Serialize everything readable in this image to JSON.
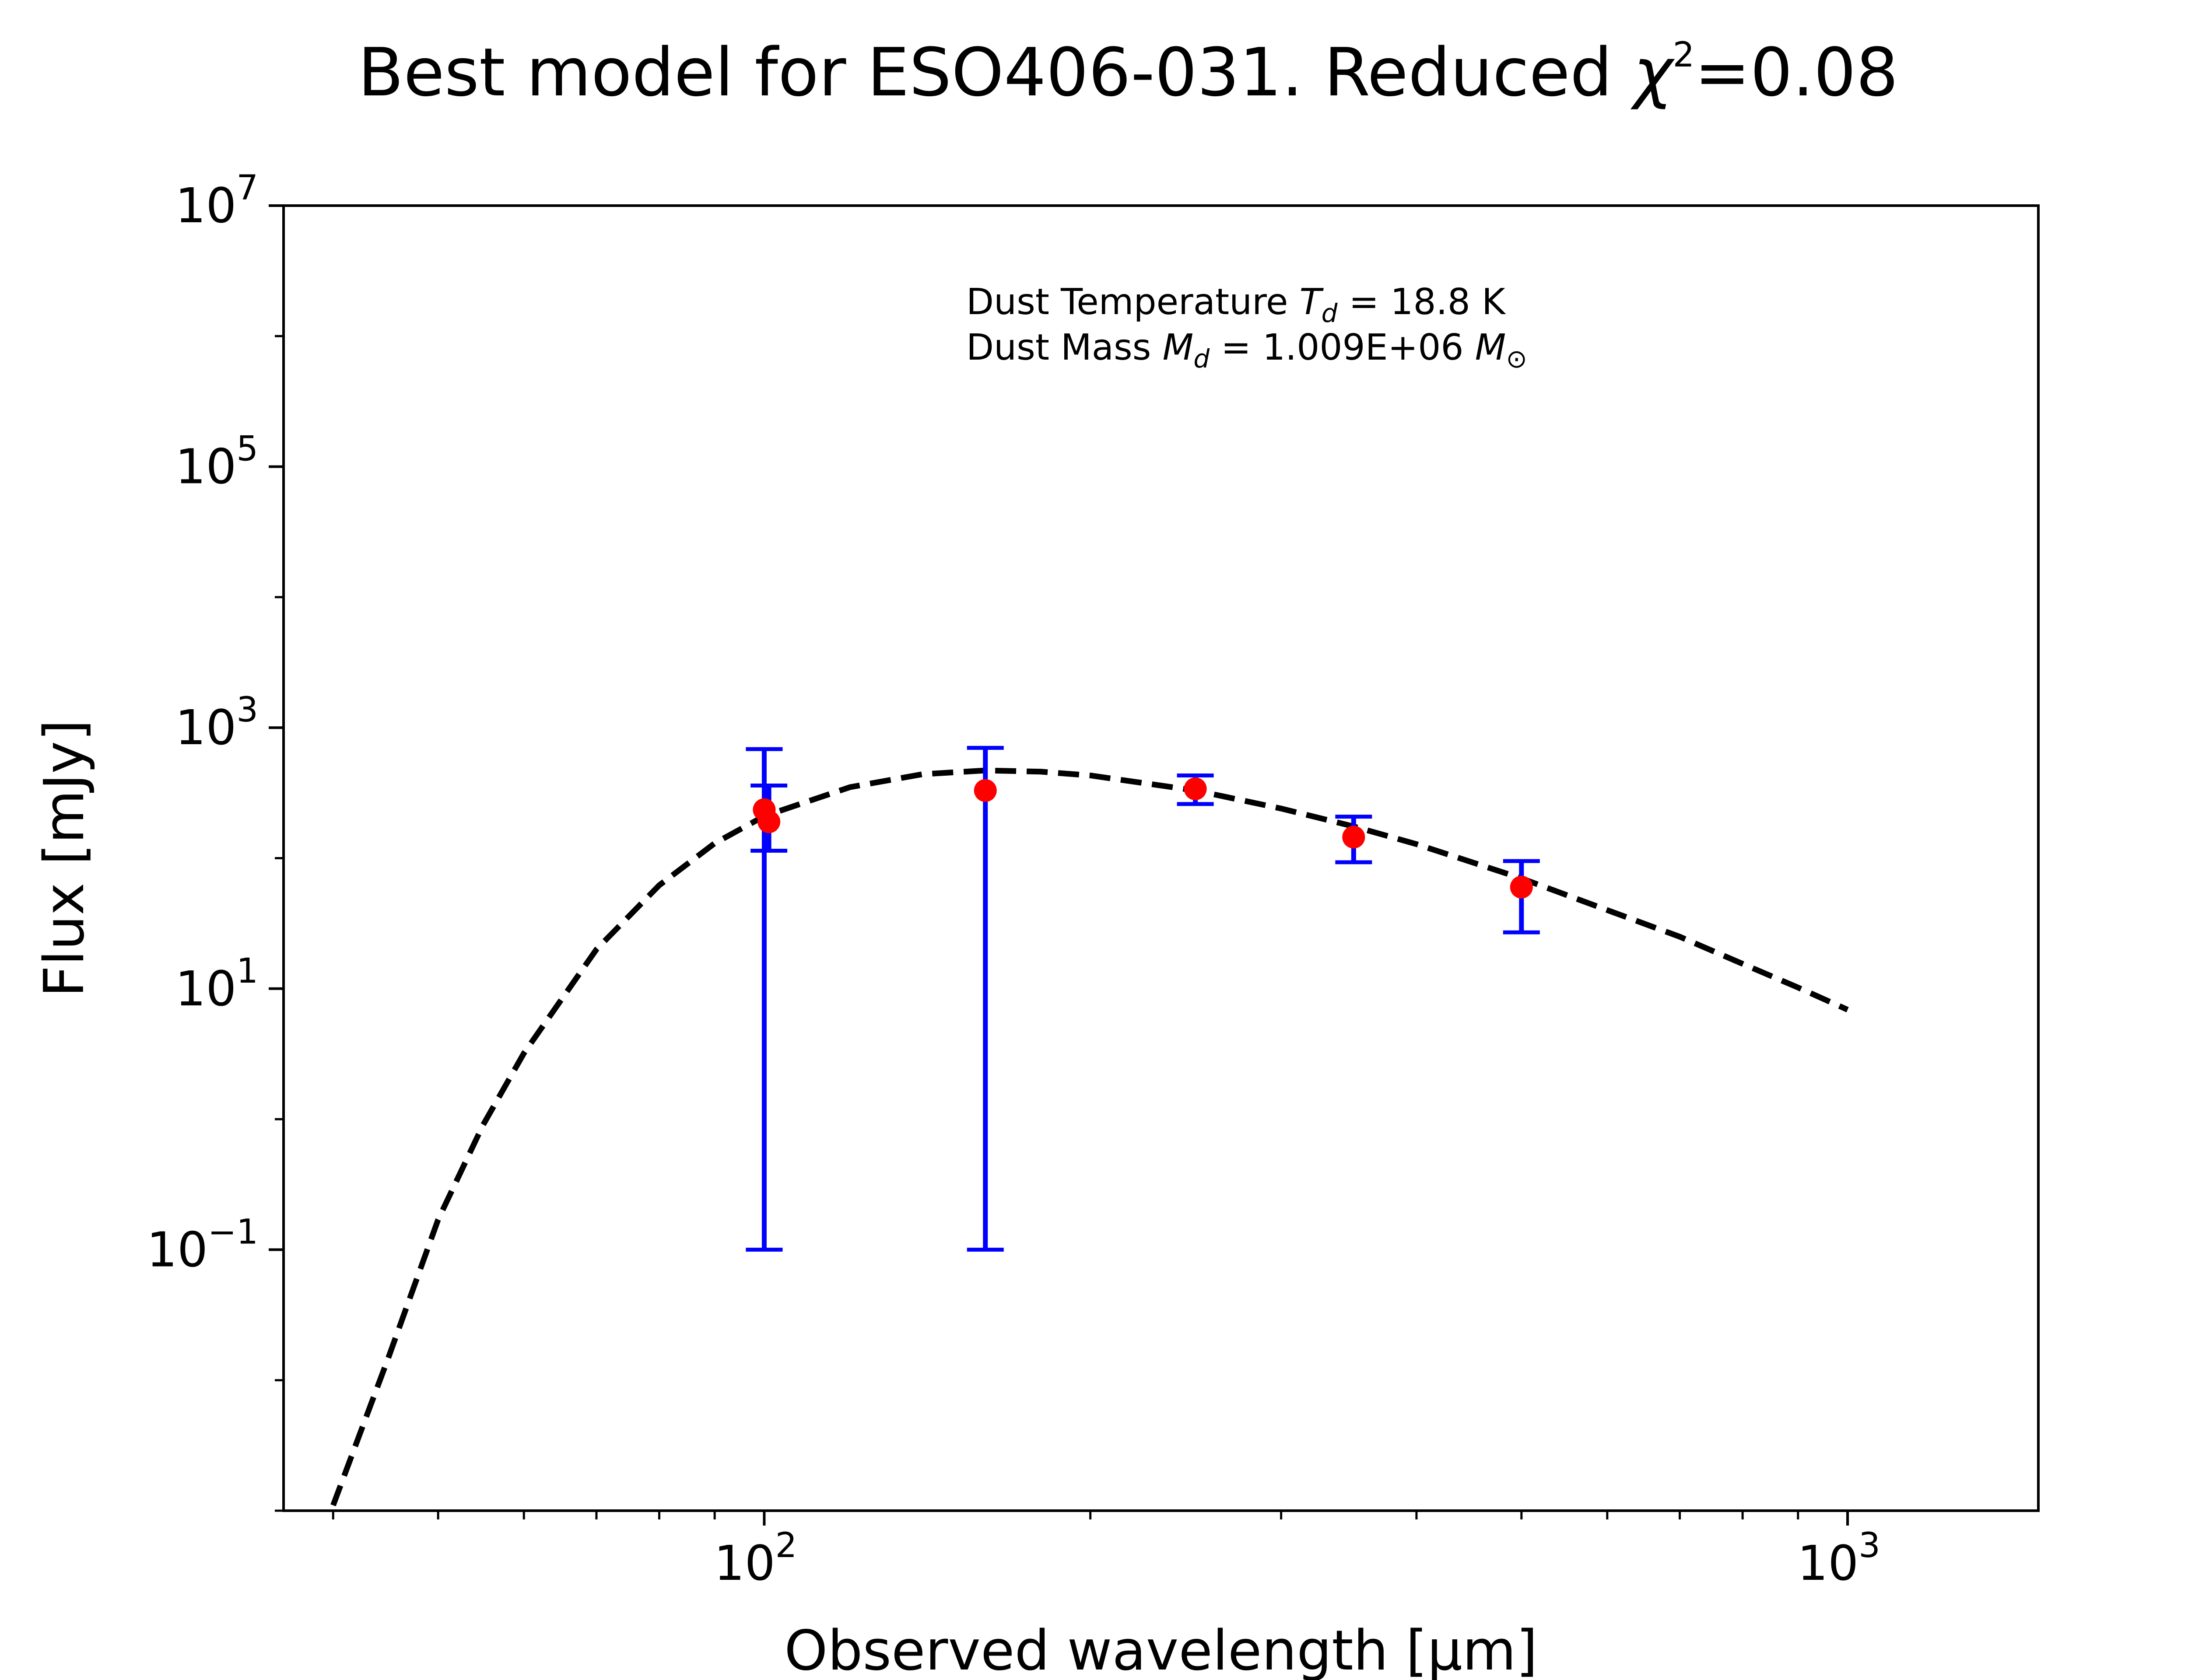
{
  "chart_data": {
    "type": "scatter",
    "title": "Best model for ESO406-031. Reduced χ²=0.08",
    "title_parts": {
      "prefix": "Best model for ESO406-031. Reduced ",
      "symbol": "χ",
      "superscript": "2",
      "suffix": "=0.08"
    },
    "xlabel": "Observed wavelength [μm]",
    "ylabel": "Flux [mJy]",
    "x_scale": "log",
    "y_scale": "log",
    "xlim": [
      36,
      1500
    ],
    "ylim": [
      0.001,
      10000000
    ],
    "x_ticks": [
      {
        "base": "10",
        "exp": "2",
        "value": 100
      },
      {
        "base": "10",
        "exp": "3",
        "value": 1000
      }
    ],
    "y_ticks": [
      {
        "base": "10",
        "exp": "−1",
        "value": 0.1
      },
      {
        "base": "10",
        "exp": "1",
        "value": 10
      },
      {
        "base": "10",
        "exp": "3",
        "value": 1000
      },
      {
        "base": "10",
        "exp": "5",
        "value": 100000
      },
      {
        "base": "10",
        "exp": "7",
        "value": 10000000
      }
    ],
    "grid": false,
    "legend": "none",
    "annotation": {
      "line1_prefix": "Dust Temperature ",
      "line1_symbol": "T",
      "line1_sub": "d",
      "line1_suffix": " = 18.8 K",
      "line2_prefix": "Dust Mass ",
      "line2_symbol": "M",
      "line2_sub": "d",
      "line2_mid": " = 1.009E+06 ",
      "line2_unit": "M",
      "line2_unit_sub": "⊙"
    },
    "observed": {
      "marker_color": "#ff0000",
      "errorbar_color": "#0000ff",
      "points": [
        {
          "x": 100,
          "y": 235,
          "yerr_low": 234.9,
          "yerr_high": 450
        },
        {
          "x": 101,
          "y": 190,
          "yerr_low": 76,
          "yerr_high": 170
        },
        {
          "x": 160,
          "y": 330,
          "yerr_low": 329.9,
          "yerr_high": 370
        },
        {
          "x": 250,
          "y": 340,
          "yerr_low": 80,
          "yerr_high": 90
        },
        {
          "x": 350,
          "y": 145,
          "yerr_low": 52,
          "yerr_high": 63
        },
        {
          "x": 500,
          "y": 60,
          "yerr_low": 33,
          "yerr_high": 35
        }
      ]
    },
    "model": {
      "line_style": "dashed",
      "color": "#000000",
      "x": [
        40,
        45,
        50,
        55,
        60,
        70,
        80,
        90,
        100,
        120,
        140,
        160,
        180,
        200,
        250,
        300,
        350,
        400,
        500,
        600,
        700,
        800,
        900,
        1000
      ],
      "y": [
        0.0011,
        0.015,
        0.17,
        0.9,
        3.2,
        20,
        62,
        130,
        210,
        350,
        440,
        470,
        460,
        430,
        330,
        240,
        175,
        128,
        70,
        40,
        25,
        15.5,
        10.2,
        6.9
      ]
    }
  }
}
